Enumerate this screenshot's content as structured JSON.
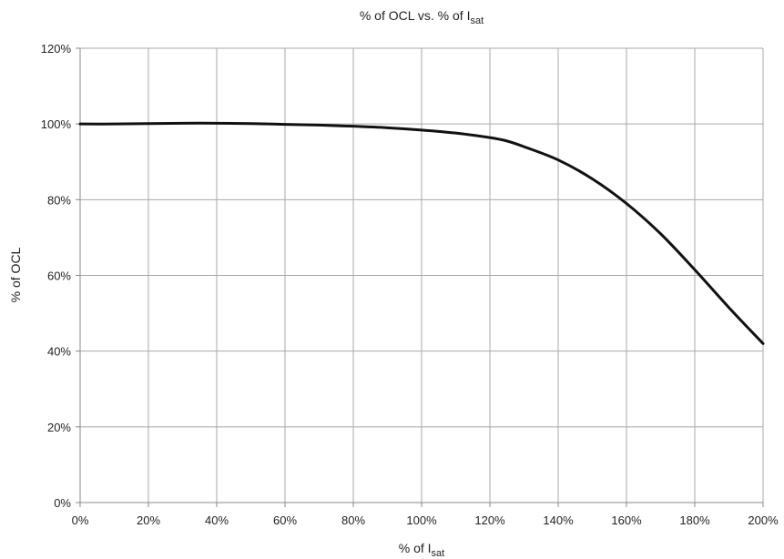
{
  "chart_data": {
    "type": "line",
    "title": "% of OCL vs. % of I",
    "title_subscript": "sat",
    "xlabel": "% of I",
    "xlabel_subscript": "sat",
    "ylabel": "% of OCL",
    "xlim": [
      0,
      200
    ],
    "ylim": [
      0,
      120
    ],
    "x_ticks": [
      "0%",
      "20%",
      "40%",
      "60%",
      "80%",
      "100%",
      "120%",
      "140%",
      "160%",
      "180%",
      "200%"
    ],
    "y_ticks": [
      "0%",
      "20%",
      "40%",
      "60%",
      "80%",
      "100%",
      "120%"
    ],
    "grid": true,
    "legend": "none",
    "series": [
      {
        "color": "#111111",
        "x": [
          0,
          10,
          20,
          30,
          40,
          50,
          60,
          70,
          80,
          90,
          100,
          110,
          120,
          125,
          130,
          140,
          150,
          160,
          170,
          180,
          190,
          200
        ],
        "y": [
          100,
          100,
          100.1,
          100.2,
          100.2,
          100.1,
          99.9,
          99.7,
          99.4,
          99.0,
          98.4,
          97.6,
          96.4,
          95.5,
          94.0,
          90.5,
          85.5,
          79.0,
          71.0,
          61.5,
          51.5,
          42.0
        ]
      }
    ]
  }
}
